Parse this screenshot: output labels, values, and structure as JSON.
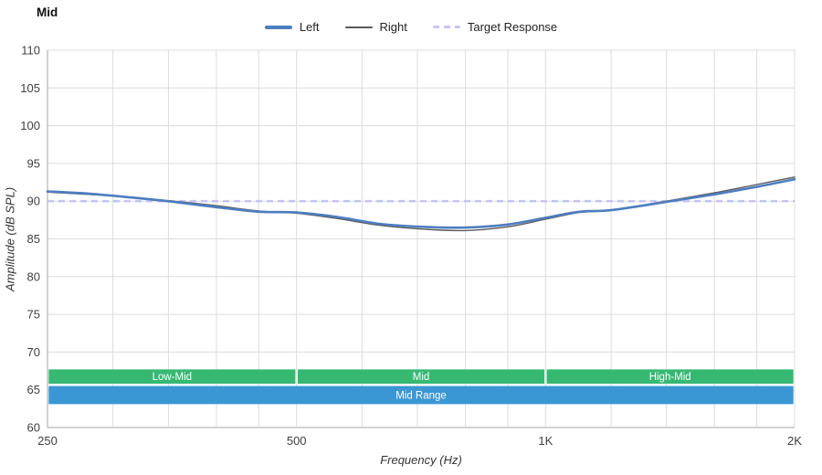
{
  "chart_data": {
    "type": "line",
    "title": "Mid",
    "xlabel": "Frequency (Hz)",
    "ylabel": "Amplitude (dB SPL)",
    "x_scale": "log",
    "xlim": [
      250,
      2000
    ],
    "ylim": [
      60,
      110
    ],
    "grid": true,
    "legend_position": "top",
    "x_ticks": [
      {
        "value": 250,
        "label": "250"
      },
      {
        "value": 500,
        "label": "500"
      },
      {
        "value": 1000,
        "label": "1K"
      },
      {
        "value": 2000,
        "label": "2K"
      }
    ],
    "x_gridlines": [
      250,
      300,
      350,
      400,
      450,
      500,
      600,
      700,
      800,
      900,
      1000,
      1200,
      1400,
      1600,
      1800,
      2000
    ],
    "y_ticks": [
      60,
      65,
      70,
      75,
      80,
      85,
      90,
      95,
      100,
      105,
      110
    ],
    "x": [
      250,
      280,
      315,
      355,
      400,
      450,
      500,
      560,
      630,
      710,
      800,
      900,
      1000,
      1100,
      1200,
      1400,
      1600,
      1800,
      2000
    ],
    "series": [
      {
        "name": "Left",
        "kind": "curve",
        "color": "#4d7ebf",
        "width": 2.6,
        "values": [
          91.3,
          91.0,
          90.5,
          89.9,
          89.2,
          88.6,
          88.5,
          87.9,
          87.0,
          86.6,
          86.5,
          86.9,
          87.8,
          88.6,
          88.8,
          89.9,
          90.9,
          91.9,
          92.9
        ]
      },
      {
        "name": "Right",
        "kind": "curve",
        "color": "#5a5a5a",
        "width": 1.4,
        "values": [
          91.2,
          90.9,
          90.5,
          90.0,
          89.4,
          88.7,
          88.4,
          87.7,
          86.8,
          86.3,
          86.1,
          86.6,
          87.6,
          88.5,
          88.8,
          90.0,
          91.1,
          92.2,
          93.2
        ]
      },
      {
        "name": "Target Response",
        "kind": "hline",
        "color": "#c7c5f3",
        "width": 2.6,
        "dash": "7 5",
        "value": 90
      }
    ],
    "bands": [
      {
        "label": "Low-Mid",
        "from": 250,
        "to": 500,
        "y_top": 67.7,
        "y_bottom": 65.8,
        "color": "#36b873",
        "text_color": "#ffffff"
      },
      {
        "label": "Mid",
        "from": 500,
        "to": 1000,
        "y_top": 67.7,
        "y_bottom": 65.8,
        "color": "#36b873",
        "text_color": "#ffffff"
      },
      {
        "label": "High-Mid",
        "from": 1000,
        "to": 2000,
        "y_top": 67.7,
        "y_bottom": 65.8,
        "color": "#36b873",
        "text_color": "#ffffff"
      },
      {
        "label": "Mid Range",
        "from": 250,
        "to": 2000,
        "y_top": 65.5,
        "y_bottom": 63.1,
        "color": "#3a97d3",
        "text_color": "#ffffff"
      }
    ]
  }
}
